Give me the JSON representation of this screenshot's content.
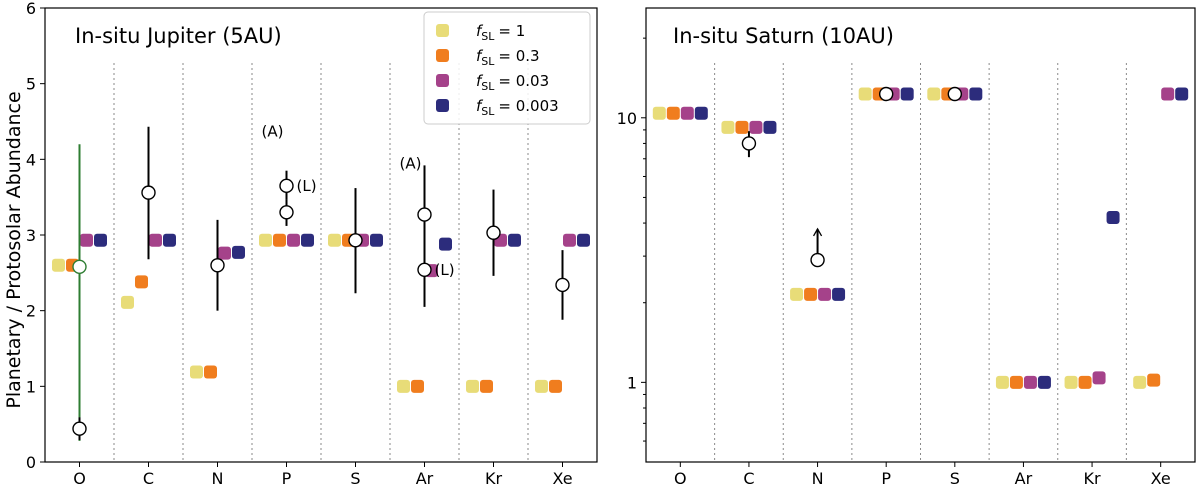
{
  "chart_data": [
    {
      "type": "scatter",
      "title": "In-situ Jupiter (5AU)",
      "ylabel": "Planetary / Protosolar Abundance",
      "yscale": "linear",
      "ylim": [
        0,
        6
      ],
      "yticks": [
        "0",
        "1",
        "2",
        "3",
        "4",
        "5",
        "6"
      ],
      "categories": [
        "O",
        "C",
        "N",
        "P",
        "S",
        "Ar",
        "Kr",
        "Xe"
      ],
      "legend": {
        "placement": "top-right",
        "entries": [
          "fSL = 1",
          "fSL = 0.3",
          "fSL = 0.03",
          "fSL = 0.003"
        ],
        "prefix": "f",
        "subscript": "SL",
        "values": [
          "= 1",
          "= 0.3",
          "= 0.03",
          "= 0.003"
        ]
      },
      "series": [
        {
          "name": "fSL = 1",
          "color": "#e8dc78",
          "values": [
            2.6,
            2.11,
            1.19,
            2.93,
            2.93,
            1.0,
            1.0,
            1.0
          ]
        },
        {
          "name": "fSL = 0.3",
          "color": "#f07d1e",
          "values": [
            2.6,
            2.38,
            1.19,
            2.93,
            2.93,
            1.0,
            1.0,
            1.0
          ]
        },
        {
          "name": "fSL = 0.03",
          "color": "#a5428a",
          "values": [
            2.93,
            2.93,
            2.76,
            2.93,
            2.93,
            2.53,
            2.93,
            2.93
          ]
        },
        {
          "name": "fSL = 0.003",
          "color": "#2c2c7c",
          "values": [
            2.93,
            2.93,
            2.77,
            2.93,
            2.93,
            2.88,
            2.93,
            2.93
          ]
        }
      ],
      "observations": [
        {
          "category": "O",
          "value": 2.58,
          "low": 0.28,
          "high": 4.2,
          "color": "#2e7d32"
        },
        {
          "category": "O",
          "value": 0.44,
          "low": 0.29,
          "high": 0.59,
          "color": "#000000"
        },
        {
          "category": "C",
          "value": 3.56,
          "low": 2.68,
          "high": 4.43,
          "color": "#000000"
        },
        {
          "category": "N",
          "value": 2.6,
          "low": 2.0,
          "high": 3.2,
          "color": "#000000"
        },
        {
          "category": "P",
          "value": 3.65,
          "low": 3.47,
          "high": 3.85,
          "color": "#000000",
          "label": "(L)"
        },
        {
          "category": "P",
          "value": 3.3,
          "low": 3.12,
          "high": 3.47,
          "color": "#000000"
        },
        {
          "category": "S",
          "value": 2.93,
          "low": 2.23,
          "high": 3.62,
          "color": "#000000"
        },
        {
          "category": "Ar",
          "value": 3.27,
          "low": 2.6,
          "high": 3.92,
          "color": "#000000"
        },
        {
          "category": "Ar",
          "value": 2.54,
          "low": 2.05,
          "high": 3.05,
          "color": "#000000",
          "label": "(L)"
        },
        {
          "category": "Kr",
          "value": 3.03,
          "low": 2.46,
          "high": 3.6,
          "color": "#000000"
        },
        {
          "category": "Xe",
          "value": 2.34,
          "low": 1.88,
          "high": 2.8,
          "color": "#000000"
        }
      ],
      "annotations": [
        {
          "text": "(A)",
          "category": "P",
          "value": 4.3
        },
        {
          "text": "(A)",
          "category": "Ar",
          "value": 3.88
        }
      ]
    },
    {
      "type": "scatter",
      "title": "In-situ Saturn (10AU)",
      "ylabel": "",
      "yscale": "log",
      "ylim": [
        0.5,
        26
      ],
      "yticks": [
        "1",
        "10"
      ],
      "categories": [
        "O",
        "C",
        "N",
        "P",
        "S",
        "Ar",
        "Kr",
        "Xe"
      ],
      "series": [
        {
          "name": "fSL = 1",
          "color": "#e8dc78",
          "values": [
            10.4,
            9.2,
            2.15,
            12.3,
            12.3,
            1.0,
            1.0,
            1.0
          ]
        },
        {
          "name": "fSL = 0.3",
          "color": "#f07d1e",
          "values": [
            10.4,
            9.2,
            2.15,
            12.3,
            12.3,
            1.0,
            1.0,
            1.02
          ]
        },
        {
          "name": "fSL = 0.03",
          "color": "#a5428a",
          "values": [
            10.4,
            9.2,
            2.15,
            12.3,
            12.3,
            1.0,
            1.04,
            12.3
          ]
        },
        {
          "name": "fSL = 0.003",
          "color": "#2c2c7c",
          "values": [
            10.4,
            9.2,
            2.15,
            12.3,
            12.3,
            1.0,
            4.2,
            12.3
          ]
        }
      ],
      "observations": [
        {
          "category": "C",
          "value": 8.0,
          "low": 7.1,
          "high": 8.9,
          "color": "#000000"
        },
        {
          "category": "N",
          "value": 2.9,
          "low": 2.9,
          "high": 3.8,
          "color": "#000000",
          "lower_limit": true
        },
        {
          "category": "P",
          "value": 12.3,
          "low": 11.6,
          "high": 13.0,
          "color": "#000000"
        },
        {
          "category": "S",
          "value": 12.3,
          "low": 12.0,
          "high": 12.6,
          "color": "#000000"
        }
      ]
    }
  ]
}
